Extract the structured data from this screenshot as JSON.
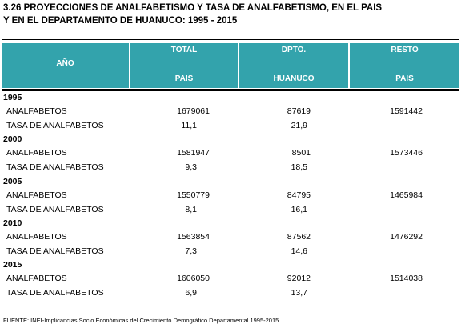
{
  "header": {
    "title": [
      "3.26  PROYECCIONES DE ANALFABETISMO Y TASA DE ANALFABETISMO, EN EL PAIS",
      "Y EN EL DEPARTAMENTO DE HUANUCO: 1995 - 2015"
    ]
  },
  "table": {
    "corner": "AÑO",
    "columns": [
      {
        "top": "TOTAL",
        "bottom": "PAIS"
      },
      {
        "top": "DPTO.",
        "bottom": "HUANUCO"
      },
      {
        "top": "RESTO",
        "bottom": "PAIS"
      }
    ],
    "groups": [
      {
        "year": "1995",
        "rows": [
          {
            "label": "ANALFABETOS",
            "values": [
              "1679061",
              "87619",
              "1591442"
            ]
          },
          {
            "label": "TASA DE ANALFABETOS",
            "values": [
              "11,1",
              "21,9"
            ]
          }
        ]
      },
      {
        "year": "2000",
        "rows": [
          {
            "label": "ANALFABETOS",
            "values": [
              "1581947",
              "8501",
              "1573446"
            ]
          },
          {
            "label": "TASA DE ANALFABETOS",
            "values": [
              "9,3",
              "18,5"
            ]
          }
        ]
      },
      {
        "year": "2005",
        "rows": [
          {
            "label": "ANALFABETOS",
            "values": [
              "1550779",
              "84795",
              "1465984"
            ]
          },
          {
            "label": "TASA DE ANALFABETOS",
            "values": [
              "8,1",
              "16,1"
            ]
          }
        ]
      },
      {
        "year": "2010",
        "rows": [
          {
            "label": "ANALFABETOS",
            "values": [
              "1563854",
              "87562",
              "1476292"
            ]
          },
          {
            "label": "TASA DE ANALFABETOS",
            "values": [
              "7,3",
              "14,6"
            ]
          }
        ]
      },
      {
        "year": "2015",
        "rows": [
          {
            "label": "ANALFABETOS",
            "values": [
              "1606050",
              "92012",
              "1514038"
            ]
          },
          {
            "label": "TASA DE ANALFABETOS",
            "values": [
              "6,9",
              "13,7"
            ]
          }
        ]
      }
    ]
  },
  "footer": {
    "source": "FUENTE: INEI-Implicancias Socio Económicas del Crecimiento Demográfico Departamental 1995-2015"
  }
}
